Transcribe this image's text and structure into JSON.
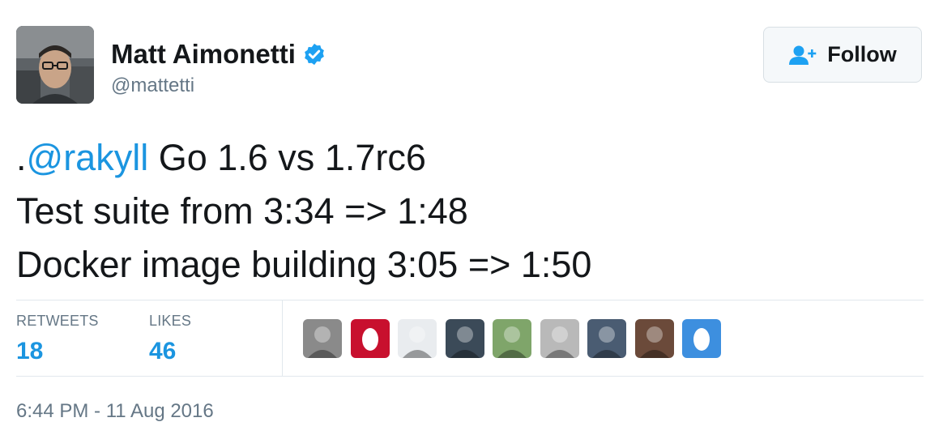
{
  "author": {
    "name": "Matt Aimonetti",
    "handle": "@mattetti",
    "verified": true
  },
  "follow_button": {
    "label": "Follow",
    "icon": "follow-user-icon"
  },
  "tweet": {
    "prefix": ".",
    "mention": "@rakyll",
    "line1_rest": " Go 1.6 vs 1.7rc6",
    "line2": "Test suite from 3:34 => 1:48",
    "line3": "Docker image building 3:05 => 1:50"
  },
  "stats": {
    "retweets_label": "RETWEETS",
    "retweets_value": "18",
    "likes_label": "LIKES",
    "likes_value": "46"
  },
  "likers": [
    {
      "icon": "liker-avatar-photo",
      "color": "#8a8a8a"
    },
    {
      "icon": "default-egg-avatar",
      "color": "#c8102e"
    },
    {
      "icon": "liker-avatar-photo",
      "color": "#e9ecef"
    },
    {
      "icon": "liker-avatar-photo",
      "color": "#3b4a58"
    },
    {
      "icon": "liker-avatar-photo",
      "color": "#7fa56a"
    },
    {
      "icon": "liker-avatar-photo",
      "color": "#b9b9b9"
    },
    {
      "icon": "liker-avatar-photo",
      "color": "#4a5c72"
    },
    {
      "icon": "liker-avatar-photo",
      "color": "#6b4a3a"
    },
    {
      "icon": "default-egg-avatar",
      "color": "#3d8fdf"
    }
  ],
  "timestamp": "6:44 PM - 11 Aug 2016",
  "colors": {
    "link": "#1b95e0",
    "verified": "#1da1f2",
    "muted": "#657786",
    "text": "#14171a"
  }
}
